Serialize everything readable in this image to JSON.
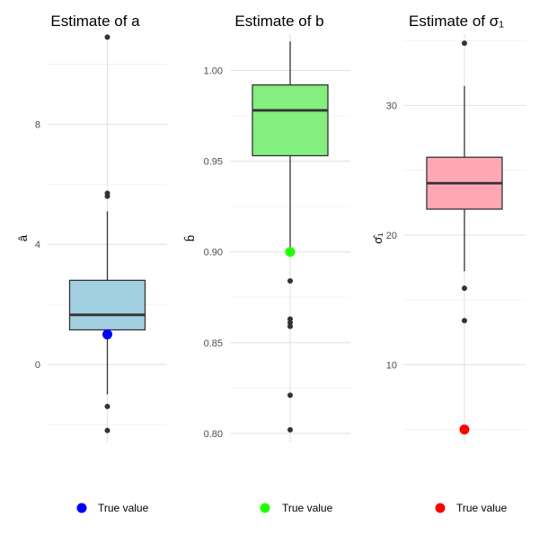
{
  "chart_data": [
    {
      "type": "box",
      "title": "Estimate of a",
      "ylabel": "â",
      "yticks": [
        0,
        4,
        8
      ],
      "ylim": [
        -2.6,
        11.0
      ],
      "box": {
        "q1": 1.15,
        "median": 1.65,
        "q3": 2.8,
        "whisker_low": -1.0,
        "whisker_high": 5.1
      },
      "outliers": [
        10.9,
        5.7,
        5.6,
        -1.4,
        -2.2
      ],
      "true_value": 1.0,
      "fill_color": "#a3d0e0",
      "true_color": "#0000ff",
      "legend": "True value"
    },
    {
      "type": "box",
      "title": "Estimate of b",
      "ylabel": "b̂",
      "yticks": [
        0.8,
        0.85,
        0.9,
        0.95,
        1.0
      ],
      "ytick_labels": [
        "0.80",
        "0.85",
        "0.90",
        "0.95",
        "1.00"
      ],
      "ylim": [
        0.795,
        1.02
      ],
      "box": {
        "q1": 0.953,
        "median": 0.978,
        "q3": 0.992,
        "whisker_low": 0.9,
        "whisker_high": 1.016
      },
      "outliers": [
        0.884,
        0.863,
        0.861,
        0.859,
        0.821,
        0.802
      ],
      "true_value": 0.9,
      "fill_color": "#84ee7e",
      "true_color": "#22ff00",
      "legend": "True value"
    },
    {
      "type": "box",
      "title": "Estimate of σ₁",
      "ylabel": "σ̂₁",
      "yticks": [
        10,
        20,
        30
      ],
      "ylim": [
        4.0,
        35.5
      ],
      "box": {
        "q1": 22.0,
        "median": 24.0,
        "q3": 26.0,
        "whisker_low": 17.2,
        "whisker_high": 31.5
      },
      "outliers": [
        34.8,
        15.9,
        13.4,
        5.0
      ],
      "true_value": 5.0,
      "fill_color": "#ffa7b5",
      "true_color": "#ff0000",
      "legend": "True value"
    }
  ]
}
